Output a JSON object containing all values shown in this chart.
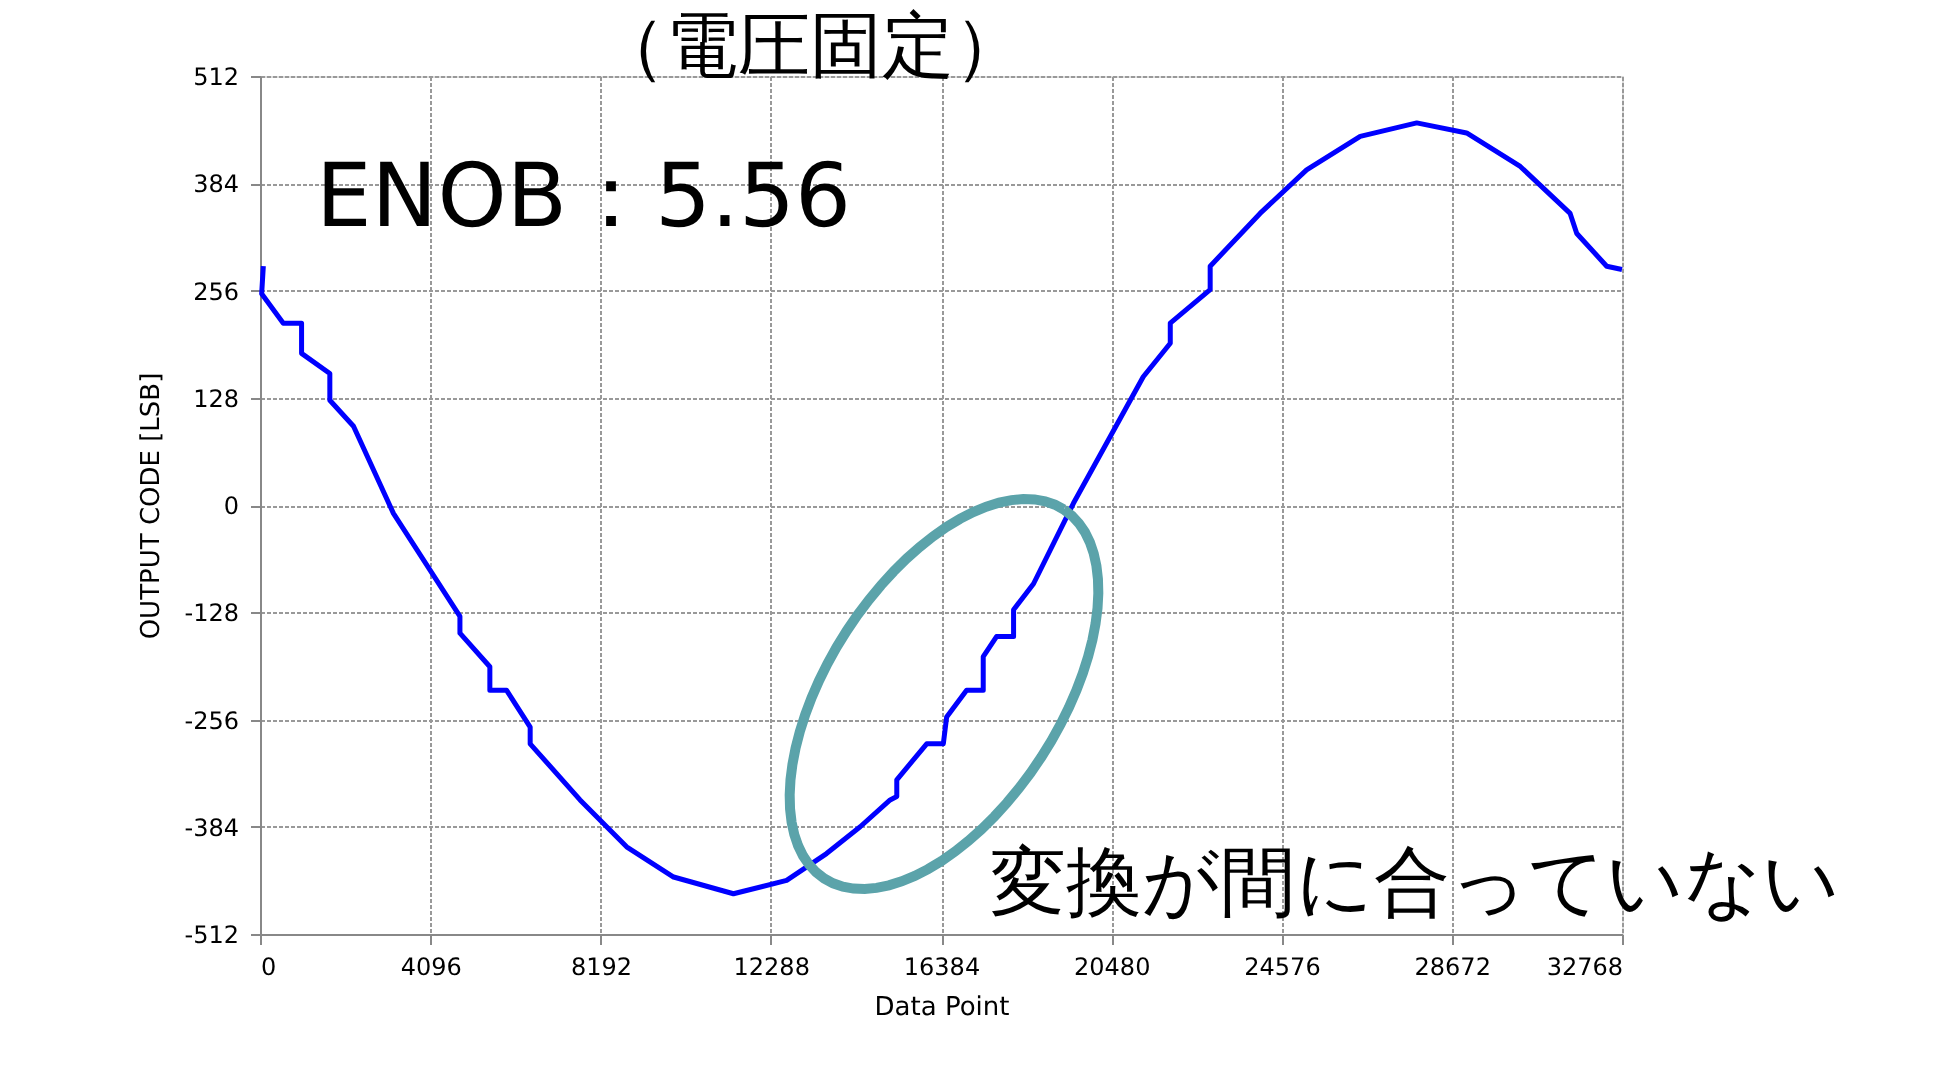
{
  "chart_data": {
    "type": "line",
    "title": "（電圧固定）",
    "xlabel": "Data Point",
    "ylabel": "OUTPUT CODE [LSB]",
    "annotations": [
      "ENOB：5.56",
      "変換が間に合っていない"
    ],
    "series": [
      {
        "color": "#0000ff",
        "x": [
          80,
          40,
          560,
          1000,
          1000,
          1680,
          1680,
          2250,
          3210,
          4810,
          4810,
          5530,
          5530,
          5930,
          6500,
          6500,
          7700,
          8820,
          9950,
          11390,
          12670,
          13630,
          14440,
          15160,
          15320,
          15320,
          16040,
          16440,
          16520,
          17000,
          17400,
          17400,
          17720,
          18130,
          18130,
          18610,
          19570,
          21250,
          21900,
          21900,
          22860,
          22860,
          24060,
          25180,
          26470,
          27830,
          29030,
          30320,
          31520,
          31680,
          32400,
          32768
        ],
        "values": [
          285,
          252,
          217,
          217,
          181,
          157,
          125,
          94,
          -10,
          -133,
          -153,
          -193,
          -221,
          -221,
          -265,
          -285,
          -352,
          -408,
          -444,
          -464,
          -448,
          -416,
          -384,
          -352,
          -348,
          -328,
          -285,
          -285,
          -253,
          -221,
          -221,
          -181,
          -157,
          -157,
          -125,
          -94,
          2,
          153,
          193,
          217,
          257,
          285,
          348,
          400,
          440,
          456,
          444,
          404,
          348,
          324,
          285,
          281
        ]
      }
    ],
    "xlim": [
      0,
      32768
    ],
    "xticks": [
      0,
      4096,
      8192,
      12288,
      16384,
      20480,
      24576,
      28672,
      32768
    ],
    "ylim": [
      -512,
      512
    ],
    "yticks": [
      -512,
      -384,
      -256,
      -128,
      0,
      128,
      256,
      384,
      512
    ],
    "grid": true,
    "marker": "none",
    "line_style": "solid"
  }
}
